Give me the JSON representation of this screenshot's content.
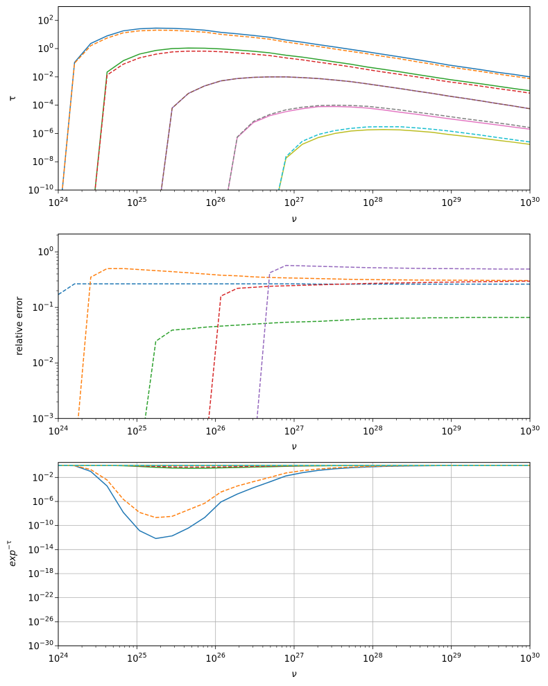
{
  "chart_data": [
    {
      "type": "line",
      "xlabel": "ν",
      "ylabel": "τ",
      "xscale": "log",
      "yscale": "log",
      "xlim": [
        1e+24,
        1e+30
      ],
      "ylim": [
        1e-10,
        930
      ],
      "grid": false,
      "x_tick_labels": [
        "10^24",
        "10^25",
        "10^26",
        "10^27",
        "10^28",
        "10^29",
        "10^30"
      ],
      "y_tick_labels": [
        "10^−10",
        "10^−8",
        "10^−6",
        "10^−4",
        "10^−2",
        "10^0",
        "10^2"
      ],
      "x": [
        1e+24,
        1.61e+24,
        2.59e+24,
        4.18e+24,
        6.72e+24,
        1.08e+25,
        1.74e+25,
        2.81e+25,
        4.52e+25,
        7.28e+25,
        1.17e+26,
        1.89e+26,
        3.04e+26,
        4.89e+26,
        7.88e+26,
        1.27e+27,
        2.04e+27,
        3.29e+27,
        5.3e+27,
        8.53e+27,
        1.37e+28,
        2.21e+28,
        3.56e+28,
        5.74e+28,
        9.24e+28,
        1.49e+29,
        2.4e+29,
        3.86e+29,
        6.21e+29,
        1e+30
      ],
      "series": [
        {
          "color": "#1f77b4",
          "style": "solid",
          "values": [
            0,
            0.105,
            2.3,
            7.9,
            18,
            25,
            28,
            27,
            24,
            20,
            14,
            11,
            8.5,
            6.3,
            4.0,
            2.8,
            1.9,
            1.3,
            0.87,
            0.59,
            0.39,
            0.26,
            0.17,
            0.11,
            0.069,
            0.047,
            0.032,
            0.021,
            0.015,
            0.01
          ]
        },
        {
          "color": "#ff7f0e",
          "style": "dashed",
          "values": [
            0,
            0.093,
            1.6,
            5.6,
            13,
            18,
            20,
            19.5,
            17,
            14.5,
            10.2,
            7.9,
            6.2,
            4.6,
            2.9,
            2.0,
            1.4,
            0.93,
            0.63,
            0.43,
            0.28,
            0.19,
            0.12,
            0.079,
            0.051,
            0.035,
            0.024,
            0.016,
            0.011,
            0.0076
          ]
        },
        {
          "color": "#2ca02c",
          "style": "solid",
          "values": [
            0,
            0,
            0,
            0.022,
            0.14,
            0.41,
            0.74,
            1.0,
            1.1,
            1.07,
            0.95,
            0.79,
            0.65,
            0.5,
            0.34,
            0.25,
            0.17,
            0.115,
            0.078,
            0.05,
            0.034,
            0.023,
            0.015,
            0.01,
            0.0066,
            0.0046,
            0.0032,
            0.0022,
            0.0015,
            0.00105
          ]
        },
        {
          "color": "#d62728",
          "style": "dashed",
          "values": [
            0,
            0,
            0,
            0.0135,
            0.079,
            0.22,
            0.4,
            0.58,
            0.66,
            0.66,
            0.6,
            0.5,
            0.41,
            0.32,
            0.22,
            0.16,
            0.11,
            0.076,
            0.051,
            0.033,
            0.022,
            0.015,
            0.0102,
            0.0068,
            0.0045,
            0.0032,
            0.0022,
            0.0015,
            0.00105,
            0.00071
          ]
        },
        {
          "color": "#9467bd",
          "style": "solid",
          "values": [
            0,
            0,
            0,
            0,
            0,
            0,
            0,
            6.3e-05,
            0.00068,
            0.0023,
            0.0052,
            0.0076,
            0.0093,
            0.01,
            0.01,
            0.0089,
            0.0076,
            0.006,
            0.0046,
            0.0032,
            0.0022,
            0.0015,
            0.001,
            0.00068,
            0.00044,
            0.0003,
            0.0002,
            0.00013,
            8.7e-05,
            5.6e-05
          ]
        },
        {
          "color": "#8c564b",
          "style": "dashed",
          "values": [
            0,
            0,
            0,
            0,
            0,
            0,
            0,
            6.3e-05,
            0.00068,
            0.0023,
            0.0052,
            0.0076,
            0.0093,
            0.01,
            0.01,
            0.0089,
            0.0076,
            0.006,
            0.0046,
            0.0032,
            0.0022,
            0.0015,
            0.001,
            0.00068,
            0.00044,
            0.0003,
            0.0002,
            0.00013,
            8.7e-05,
            5.6e-05
          ]
        },
        {
          "color": "#e377c2",
          "style": "solid",
          "values": [
            0,
            0,
            0,
            0,
            0,
            0,
            0,
            0,
            0,
            0,
            0,
            5.2e-07,
            6e-06,
            1.8e-05,
            3.5e-05,
            5.6e-05,
            7.9e-05,
            8.1e-05,
            7.4e-05,
            6.3e-05,
            4.6e-05,
            3.2e-05,
            2.3e-05,
            1.6e-05,
            1.1e-05,
            7.9e-06,
            5.6e-06,
            4e-06,
            2.8e-06,
            2e-06
          ]
        },
        {
          "color": "#7f7f7f",
          "style": "dashed",
          "values": [
            0,
            0,
            0,
            0,
            0,
            0,
            0,
            0,
            0,
            0,
            0,
            5.6e-07,
            7.1e-06,
            2.2e-05,
            4.7e-05,
            7.2e-05,
            9.3e-05,
            0.0001,
            9.5e-05,
            8.3e-05,
            6.3e-05,
            4.6e-05,
            3.2e-05,
            2.3e-05,
            1.6e-05,
            1.1e-05,
            7.9e-06,
            5.6e-06,
            3.9e-06,
            2.6e-06
          ]
        },
        {
          "color": "#bcbd22",
          "style": "solid",
          "values": [
            0,
            0,
            0,
            0,
            0,
            0,
            0,
            0,
            0,
            0,
            0,
            0,
            0,
            0,
            1.8e-08,
            1.7e-07,
            5.2e-07,
            1e-06,
            1.5e-06,
            1.8e-06,
            1.9e-06,
            1.8e-06,
            1.5e-06,
            1.2e-06,
            8.5e-07,
            6.3e-07,
            4.6e-07,
            3.3e-07,
            2.4e-07,
            1.7e-07
          ]
        },
        {
          "color": "#17becf",
          "style": "dashed",
          "values": [
            0,
            0,
            0,
            0,
            0,
            0,
            0,
            0,
            0,
            0,
            0,
            0,
            0,
            0,
            2.3e-08,
            2.8e-07,
            8.5e-07,
            1.6e-06,
            2.3e-06,
            2.9e-06,
            3e-06,
            3e-06,
            2.5e-06,
            2e-06,
            1.5e-06,
            1.07e-06,
            7.6e-07,
            5.2e-07,
            3.6e-07,
            2.5e-07
          ]
        }
      ]
    },
    {
      "type": "line",
      "xlabel": "ν",
      "ylabel": "relative error",
      "xscale": "log",
      "yscale": "log",
      "xlim": [
        1e+24,
        1e+30
      ],
      "ylim": [
        0.001,
        2.1
      ],
      "grid": false,
      "x_tick_labels": [
        "10^24",
        "10^25",
        "10^26",
        "10^27",
        "10^28",
        "10^29",
        "10^30"
      ],
      "y_tick_labels": [
        "10^−3",
        "10^−2",
        "10^−1",
        "10^0"
      ],
      "x": [
        1e+24,
        1.61e+24,
        2.59e+24,
        4.18e+24,
        6.72e+24,
        1.08e+25,
        1.74e+25,
        2.81e+25,
        4.52e+25,
        7.28e+25,
        1.17e+26,
        1.89e+26,
        3.04e+26,
        4.89e+26,
        7.88e+26,
        1.27e+27,
        2.04e+27,
        3.29e+27,
        5.3e+27,
        8.53e+27,
        1.37e+28,
        2.21e+28,
        3.56e+28,
        5.74e+28,
        9.24e+28,
        1.49e+29,
        2.4e+29,
        3.86e+29,
        6.21e+29,
        1e+30
      ],
      "series": [
        {
          "color": "#1f77b4",
          "style": "dashed",
          "values": [
            0.17,
            0.265,
            0.265,
            0.265,
            0.265,
            0.265,
            0.265,
            0.265,
            0.265,
            0.265,
            0.265,
            0.265,
            0.265,
            0.265,
            0.265,
            0.265,
            0.262,
            0.262,
            0.262,
            0.262,
            0.262,
            0.262,
            0.262,
            0.262,
            0.262,
            0.262,
            0.262,
            0.262,
            0.262,
            0.262
          ]
        },
        {
          "color": "#ff7f0e",
          "style": "dashed",
          "values": [
            0,
            0,
            0.35,
            0.5,
            0.5,
            0.48,
            0.46,
            0.44,
            0.42,
            0.4,
            0.38,
            0.37,
            0.355,
            0.345,
            0.34,
            0.335,
            0.33,
            0.325,
            0.32,
            0.318,
            0.315,
            0.313,
            0.311,
            0.31,
            0.309,
            0.308,
            0.307,
            0.306,
            0.305,
            0.304
          ]
        },
        {
          "color": "#2ca02c",
          "style": "dashed",
          "values": [
            0,
            0,
            0,
            0,
            0,
            0,
            0.0246,
            0.039,
            0.041,
            0.044,
            0.046,
            0.048,
            0.05,
            0.052,
            0.054,
            0.055,
            0.056,
            0.058,
            0.06,
            0.062,
            0.063,
            0.064,
            0.064,
            0.065,
            0.065,
            0.066,
            0.066,
            0.066,
            0.066,
            0.066
          ]
        },
        {
          "color": "#d62728",
          "style": "dashed",
          "values": [
            0,
            0,
            0,
            0,
            0,
            0,
            0,
            0,
            0,
            0,
            0.16,
            0.22,
            0.23,
            0.24,
            0.245,
            0.25,
            0.255,
            0.26,
            0.265,
            0.27,
            0.273,
            0.276,
            0.279,
            0.282,
            0.285,
            0.288,
            0.29,
            0.292,
            0.295,
            0.297
          ]
        },
        {
          "color": "#9467bd",
          "style": "dashed",
          "values": [
            0,
            0,
            0,
            0,
            0,
            0,
            0,
            0,
            0,
            0,
            0,
            0,
            0,
            0.42,
            0.57,
            0.56,
            0.55,
            0.54,
            0.53,
            0.52,
            0.515,
            0.51,
            0.505,
            0.5,
            0.5,
            0.495,
            0.495,
            0.49,
            0.49,
            0.49
          ]
        }
      ]
    },
    {
      "type": "line",
      "xlabel": "ν",
      "ylabel": "exp^−τ",
      "xscale": "log",
      "yscale": "log",
      "xlim": [
        1e+24,
        1e+30
      ],
      "ylim": [
        1e-30,
        3.1
      ],
      "grid": true,
      "x_tick_labels": [
        "10^24",
        "10^25",
        "10^26",
        "10^27",
        "10^28",
        "10^29",
        "10^30"
      ],
      "y_tick_labels": [
        "10^−30",
        "10^−26",
        "10^−22",
        "10^−18",
        "10^−14",
        "10^−10",
        "10^−6",
        "10^−2"
      ],
      "x": [
        1e+24,
        1.61e+24,
        2.59e+24,
        4.18e+24,
        6.72e+24,
        1.08e+25,
        1.74e+25,
        2.81e+25,
        4.52e+25,
        7.28e+25,
        1.17e+26,
        1.89e+26,
        3.04e+26,
        4.89e+26,
        7.88e+26,
        1.27e+27,
        2.04e+27,
        3.29e+27,
        5.3e+27,
        8.53e+27,
        1.37e+28,
        2.21e+28,
        3.56e+28,
        5.74e+28,
        9.24e+28,
        1.49e+29,
        2.4e+29,
        3.86e+29,
        6.21e+29,
        1e+30
      ],
      "series": [
        {
          "color": "#1f77b4",
          "style": "solid",
          "values": [
            1,
            0.9,
            0.1,
            0.00037,
            1.5e-08,
            1.4e-11,
            6.9e-13,
            1.9e-12,
            3.8e-11,
            2.1e-09,
            8.3e-07,
            1.7e-05,
            0.0002,
            0.0018,
            0.018,
            0.061,
            0.15,
            0.27,
            0.42,
            0.55,
            0.68,
            0.77,
            0.84,
            0.9,
            0.93,
            0.95,
            0.97,
            0.98,
            0.985,
            0.99
          ]
        },
        {
          "color": "#ff7f0e",
          "style": "dashed",
          "values": [
            1,
            0.91,
            0.2,
            0.0037,
            2.3e-06,
            1.5e-08,
            2.1e-09,
            3.4e-09,
            4.1e-08,
            5e-07,
            3.7e-05,
            0.00037,
            0.002,
            0.01,
            0.055,
            0.135,
            0.25,
            0.39,
            0.53,
            0.65,
            0.76,
            0.83,
            0.89,
            0.92,
            0.95,
            0.966,
            0.976,
            0.984,
            0.989,
            0.992
          ]
        },
        {
          "color": "#2ca02c",
          "style": "solid",
          "values": [
            1,
            1,
            1,
            0.978,
            0.87,
            0.66,
            0.48,
            0.37,
            0.33,
            0.34,
            0.39,
            0.45,
            0.52,
            0.61,
            0.71,
            0.78,
            0.84,
            0.89,
            0.925,
            0.95,
            0.967,
            0.977,
            0.985,
            0.99,
            0.993,
            0.995,
            0.997,
            0.998,
            0.998,
            0.999
          ]
        },
        {
          "color": "#d62728",
          "style": "dashed",
          "values": [
            1,
            1,
            1,
            0.987,
            0.92,
            0.8,
            0.67,
            0.56,
            0.52,
            0.52,
            0.55,
            0.61,
            0.66,
            0.73,
            0.8,
            0.85,
            0.9,
            0.93,
            0.95,
            0.97,
            0.98,
            0.985,
            0.99,
            0.993,
            0.996,
            0.997,
            0.998,
            0.998,
            0.999,
            0.999
          ]
        },
        {
          "color": "#9467bd",
          "style": "solid",
          "values": [
            1,
            1,
            1,
            1,
            1,
            1,
            1,
            1,
            0.999,
            0.998,
            0.995,
            0.992,
            0.991,
            0.99,
            0.99,
            0.991,
            0.992,
            0.994,
            0.995,
            0.997,
            0.998,
            0.9985,
            0.999,
            0.9993,
            0.9996,
            0.9997,
            0.9998,
            0.9999,
            0.9999,
            0.9999
          ]
        },
        {
          "color": "#8c564b",
          "style": "dashed",
          "values": [
            1,
            1,
            1,
            1,
            1,
            1,
            1,
            1,
            0.999,
            0.998,
            0.995,
            0.992,
            0.991,
            0.99,
            0.99,
            0.991,
            0.992,
            0.994,
            0.995,
            0.997,
            0.998,
            0.9985,
            0.999,
            0.9993,
            0.9996,
            0.9997,
            0.9998,
            0.9999,
            0.9999,
            0.9999
          ]
        },
        {
          "color": "#e377c2",
          "style": "solid",
          "values": [
            1,
            1,
            1,
            1,
            1,
            1,
            1,
            1,
            1,
            1,
            1,
            1,
            1,
            1,
            1,
            1,
            1,
            1,
            1,
            1,
            1,
            1,
            1,
            1,
            1,
            1,
            1,
            1,
            1,
            1
          ]
        },
        {
          "color": "#7f7f7f",
          "style": "dashed",
          "values": [
            1,
            1,
            1,
            1,
            1,
            1,
            1,
            1,
            1,
            1,
            1,
            1,
            1,
            1,
            1,
            1,
            1,
            1,
            1,
            1,
            1,
            1,
            1,
            1,
            1,
            1,
            1,
            1,
            1,
            1
          ]
        },
        {
          "color": "#bcbd22",
          "style": "solid",
          "values": [
            1,
            1,
            1,
            1,
            1,
            1,
            1,
            1,
            1,
            1,
            1,
            1,
            1,
            1,
            1,
            1,
            1,
            1,
            1,
            1,
            1,
            1,
            1,
            1,
            1,
            1,
            1,
            1,
            1,
            1
          ]
        },
        {
          "color": "#17becf",
          "style": "dashed",
          "values": [
            1,
            1,
            1,
            1,
            1,
            1,
            1,
            1,
            1,
            1,
            1,
            1,
            1,
            1,
            1,
            1,
            1,
            1,
            1,
            1,
            1,
            1,
            1,
            1,
            1,
            1,
            1,
            1,
            1,
            1
          ]
        }
      ]
    }
  ]
}
